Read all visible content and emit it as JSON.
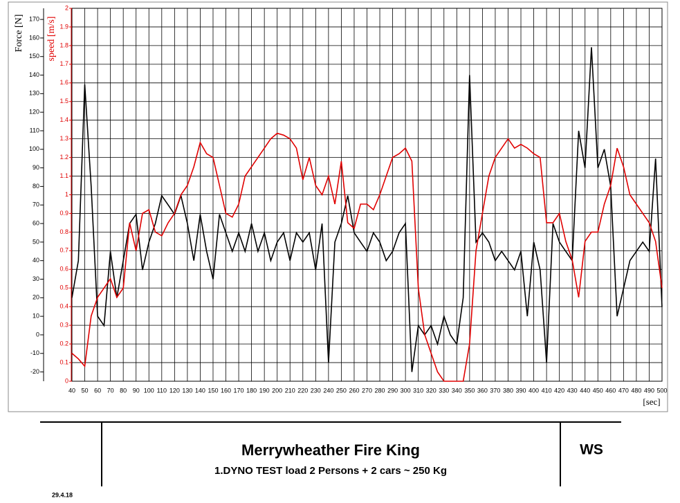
{
  "chart_data": {
    "type": "line",
    "title": "Merrywheather Fire King",
    "subtitle": "1.DYNO TEST load 2 Persons + 2 cars ~ 250 Kg",
    "annotations": {
      "code": "WS",
      "date": "29.4.18"
    },
    "xlabel": "[sec]",
    "ylabel": "Force [N]",
    "y2label": "speed [m/s]",
    "grid": true,
    "x": [
      40,
      45,
      50,
      55,
      60,
      65,
      70,
      75,
      80,
      85,
      90,
      95,
      100,
      105,
      110,
      115,
      120,
      125,
      130,
      135,
      140,
      145,
      150,
      155,
      160,
      165,
      170,
      175,
      180,
      185,
      190,
      195,
      200,
      205,
      210,
      215,
      220,
      225,
      230,
      235,
      240,
      245,
      250,
      255,
      260,
      265,
      270,
      275,
      280,
      285,
      290,
      295,
      300,
      305,
      310,
      315,
      320,
      325,
      330,
      335,
      340,
      345,
      350,
      355,
      360,
      365,
      370,
      375,
      380,
      385,
      390,
      395,
      400,
      405,
      410,
      415,
      420,
      425,
      430,
      435,
      440,
      445,
      450,
      455,
      460,
      465,
      470,
      475,
      480,
      485,
      490,
      495,
      500
    ],
    "xlim": [
      40,
      500
    ],
    "xticks": [
      40,
      50,
      60,
      70,
      80,
      90,
      100,
      110,
      120,
      130,
      140,
      150,
      160,
      170,
      180,
      190,
      200,
      210,
      220,
      230,
      240,
      250,
      260,
      270,
      280,
      290,
      300,
      310,
      320,
      330,
      340,
      350,
      360,
      370,
      380,
      390,
      400,
      410,
      420,
      430,
      440,
      450,
      460,
      470,
      480,
      490,
      500
    ],
    "ylim": [
      -25,
      176
    ],
    "yticks": [
      -20,
      -10,
      0,
      10,
      20,
      30,
      40,
      50,
      60,
      70,
      80,
      90,
      100,
      110,
      120,
      130,
      140,
      150,
      160,
      170
    ],
    "y2lim": [
      0,
      2
    ],
    "y2ticks": [
      0,
      0.1,
      0.2,
      0.3,
      0.4,
      0.5,
      0.6,
      0.7,
      0.8,
      0.9,
      1,
      1.1,
      1.2,
      1.3,
      1.4,
      1.5,
      1.6,
      1.7,
      1.8,
      1.9,
      2
    ],
    "series": [
      {
        "color": "#000000",
        "axis": "y",
        "values": [
          20,
          40,
          135,
          80,
          10,
          5,
          45,
          20,
          40,
          60,
          65,
          35,
          50,
          60,
          75,
          70,
          65,
          75,
          60,
          40,
          65,
          45,
          30,
          65,
          55,
          45,
          55,
          45,
          60,
          45,
          55,
          40,
          50,
          55,
          40,
          55,
          50,
          55,
          35,
          60,
          -15,
          50,
          60,
          75,
          55,
          50,
          45,
          55,
          50,
          40,
          45,
          55,
          60,
          -20,
          5,
          0,
          5,
          -5,
          10,
          0,
          -5,
          20,
          140,
          50,
          55,
          50,
          40,
          45,
          40,
          35,
          45,
          10,
          50,
          35,
          -15,
          60,
          50,
          45,
          40,
          110,
          90,
          155,
          90,
          100,
          80,
          10,
          25,
          40,
          45,
          50,
          45,
          95,
          15
        ]
      },
      {
        "color": "#e00000",
        "axis": "y2",
        "values": [
          0.15,
          0.12,
          0.08,
          0.35,
          0.45,
          0.5,
          0.55,
          0.45,
          0.5,
          0.85,
          0.7,
          0.9,
          0.92,
          0.8,
          0.78,
          0.85,
          0.9,
          1.0,
          1.05,
          1.15,
          1.28,
          1.22,
          1.2,
          1.05,
          0.9,
          0.88,
          0.95,
          1.1,
          1.15,
          1.2,
          1.25,
          1.3,
          1.33,
          1.32,
          1.3,
          1.25,
          1.08,
          1.2,
          1.05,
          1.0,
          1.1,
          0.95,
          1.18,
          0.85,
          0.82,
          0.95,
          0.95,
          0.92,
          1.0,
          1.1,
          1.2,
          1.22,
          1.25,
          1.18,
          0.5,
          0.25,
          0.15,
          0.05,
          0,
          0,
          0,
          0,
          0.2,
          0.7,
          0.9,
          1.1,
          1.2,
          1.25,
          1.3,
          1.25,
          1.27,
          1.25,
          1.22,
          1.2,
          0.85,
          0.85,
          0.9,
          0.75,
          0.65,
          0.45,
          0.75,
          0.8,
          0.8,
          0.95,
          1.05,
          1.25,
          1.15,
          1.0,
          0.95,
          0.9,
          0.85,
          0.75,
          0.5
        ]
      }
    ]
  }
}
